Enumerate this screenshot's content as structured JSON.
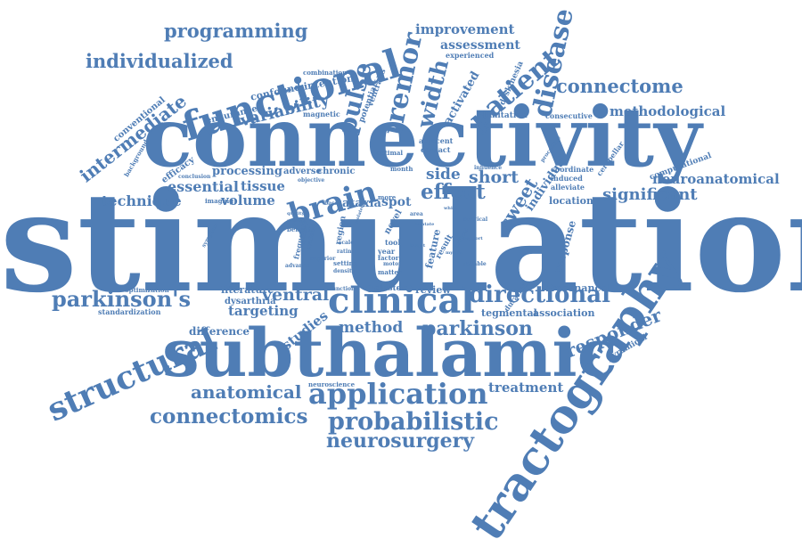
{
  "colors": {
    "word": "#4f7db5",
    "background": "#ffffff"
  },
  "words": [
    {
      "text": "stimulation"
    },
    {
      "text": "connectivity"
    },
    {
      "text": "subthalamic"
    },
    {
      "text": "tractography"
    },
    {
      "text": "functional"
    },
    {
      "text": "clinical"
    },
    {
      "text": "structural"
    },
    {
      "text": "application"
    },
    {
      "text": "brain"
    },
    {
      "text": "probabilistic"
    },
    {
      "text": "patient"
    },
    {
      "text": "disease"
    },
    {
      "text": "tremor"
    },
    {
      "text": "pulse"
    },
    {
      "text": "width"
    },
    {
      "text": "directional"
    },
    {
      "text": "connectomics"
    },
    {
      "text": "neurosurgery"
    },
    {
      "text": "parkinson's"
    },
    {
      "text": "parkinson"
    },
    {
      "text": "programming"
    },
    {
      "text": "individualized"
    },
    {
      "text": "connectome"
    },
    {
      "text": "variability"
    },
    {
      "text": "effect"
    },
    {
      "text": "intermediate"
    },
    {
      "text": "anatomical"
    },
    {
      "text": "responder"
    },
    {
      "text": "significant"
    },
    {
      "text": "neuroanatomical"
    },
    {
      "text": "methodological"
    },
    {
      "text": "method"
    },
    {
      "text": "sweet"
    },
    {
      "text": "short"
    },
    {
      "text": "side"
    },
    {
      "text": "ventral"
    },
    {
      "text": "treatment"
    },
    {
      "text": "improvement"
    },
    {
      "text": "assessment"
    },
    {
      "text": "essential"
    },
    {
      "text": "tissue"
    },
    {
      "text": "volume"
    },
    {
      "text": "technique"
    },
    {
      "text": "processing"
    },
    {
      "text": "targeting"
    },
    {
      "text": "studies"
    },
    {
      "text": "activated"
    },
    {
      "text": "difference"
    },
    {
      "text": "ataxia"
    },
    {
      "text": "spot"
    },
    {
      "text": "review"
    },
    {
      "text": "literature"
    },
    {
      "text": "tegmental"
    },
    {
      "text": "association"
    },
    {
      "text": "resonance"
    },
    {
      "text": "location"
    },
    {
      "text": "individual"
    },
    {
      "text": "response"
    },
    {
      "text": "cluster"
    },
    {
      "text": "feature"
    },
    {
      "text": "dysarthria"
    },
    {
      "text": "adverse"
    },
    {
      "text": "chronic"
    },
    {
      "text": "efficacy"
    },
    {
      "text": "conventional"
    },
    {
      "text": "endurance"
    },
    {
      "text": "confound"
    },
    {
      "text": "intention"
    },
    {
      "text": "combination"
    },
    {
      "text": "ventralis"
    },
    {
      "text": "potentials"
    },
    {
      "text": "magnetic"
    },
    {
      "text": "experienced"
    },
    {
      "text": "dyskinesia"
    },
    {
      "text": "limitation"
    },
    {
      "text": "consecutive"
    },
    {
      "text": "adjacent"
    },
    {
      "text": "contact"
    },
    {
      "text": "optimal"
    },
    {
      "text": "month"
    },
    {
      "text": "computational"
    },
    {
      "text": "coordinate"
    },
    {
      "text": "induced"
    },
    {
      "text": "alleviate"
    },
    {
      "text": "cerebellar"
    },
    {
      "text": "procedure"
    },
    {
      "text": "influence"
    },
    {
      "text": "pyramidal"
    },
    {
      "text": "duration"
    },
    {
      "text": "optimization"
    },
    {
      "text": "standardization"
    },
    {
      "text": "neuroscience"
    },
    {
      "text": "background"
    },
    {
      "text": "conclusion"
    },
    {
      "text": "imaging"
    },
    {
      "text": "objective"
    },
    {
      "text": "symptom"
    },
    {
      "text": "benefit"
    },
    {
      "text": "frequency"
    },
    {
      "text": "available"
    },
    {
      "text": "superior"
    },
    {
      "text": "advance"
    },
    {
      "text": "density"
    },
    {
      "text": "setting"
    },
    {
      "text": "rating"
    },
    {
      "text": "scale"
    },
    {
      "text": "tool"
    },
    {
      "text": "year"
    },
    {
      "text": "factor"
    },
    {
      "text": "motor"
    },
    {
      "text": "matter"
    },
    {
      "text": "novel"
    },
    {
      "text": "area"
    },
    {
      "text": "more"
    },
    {
      "text": "based"
    },
    {
      "text": "surgical"
    },
    {
      "text": "result"
    },
    {
      "text": "critical"
    },
    {
      "text": "reliable"
    },
    {
      "text": "function"
    },
    {
      "text": "white"
    },
    {
      "text": "region"
    },
    {
      "text": "quality"
    },
    {
      "text": "anterior"
    },
    {
      "text": "specific"
    },
    {
      "text": "target"
    },
    {
      "text": "support"
    },
    {
      "text": "myelin"
    },
    {
      "text": "isolated"
    },
    {
      "text": "dentate"
    }
  ]
}
